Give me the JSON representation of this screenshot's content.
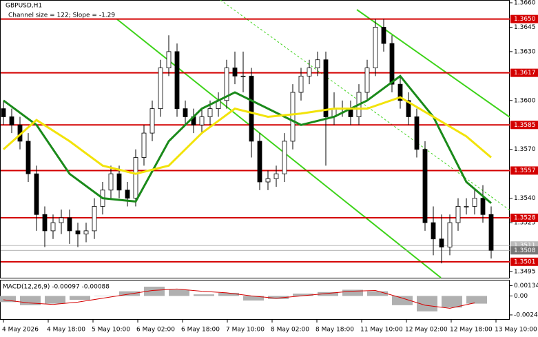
{
  "chart_data": {
    "type": "candlestick",
    "symbol": "GBPUSD,H1",
    "subtitle": "Channel size = 122; Slope = -1.29",
    "ylim": [
      1.3495,
      1.366
    ],
    "yticks": [
      {
        "value": 1.366,
        "label": "1.3660"
      },
      1.3645,
      {
        "value": 1.363,
        "label": "1.3630"
      },
      {
        "value": 1.36,
        "label": "1.3600"
      },
      {
        "value": 1.357,
        "label": "1.3570"
      },
      {
        "value": 1.354,
        "label": "1.3540"
      },
      1.3525,
      1.3495
    ],
    "levels": [
      {
        "value": 1.365,
        "label": "1.3650"
      },
      1.3617,
      1.3585,
      1.3557,
      1.3528,
      1.3501
    ],
    "level_color": "#d40000",
    "current_prices": [
      1.3511,
      1.3508
    ],
    "x_labels": [
      "4 May 2026",
      "4 May 18:00",
      "5 May 10:00",
      "6 May 02:00",
      "6 May 18:00",
      "7 May 10:00",
      "8 May 02:00",
      "8 May 18:00",
      "11 May 10:00",
      "12 May 02:00",
      "12 May 18:00",
      "13 May 10:00"
    ],
    "open": [
      1.3595,
      1.359,
      1.3585,
      1.3575,
      1.3555,
      1.353,
      1.352,
      1.3525,
      1.3528,
      1.352,
      1.3518,
      1.352,
      1.3535,
      1.3545,
      1.3555,
      1.3545,
      1.354,
      1.3565,
      1.358,
      1.3595,
      1.362,
      1.363,
      1.3595,
      1.359,
      1.3585,
      1.359,
      1.3595,
      1.36,
      1.362,
      1.3615,
      1.3615,
      1.3575,
      1.355,
      1.3552,
      1.3555,
      1.3575,
      1.3605,
      1.3615,
      1.362,
      1.3625,
      1.359,
      1.3595,
      1.3595,
      1.359,
      1.3605,
      1.362,
      1.3645,
      1.3635,
      1.361,
      1.36,
      1.359,
      1.357,
      1.3525,
      1.3515,
      1.351,
      1.3525,
      1.3535,
      1.3535,
      1.354,
      1.353
    ],
    "high": [
      1.36,
      1.3595,
      1.359,
      1.358,
      1.356,
      1.3535,
      1.353,
      1.3533,
      1.3533,
      1.3525,
      1.3525,
      1.354,
      1.355,
      1.356,
      1.356,
      1.355,
      1.357,
      1.3585,
      1.36,
      1.3625,
      1.364,
      1.3635,
      1.36,
      1.3595,
      1.3595,
      1.36,
      1.3605,
      1.3625,
      1.363,
      1.363,
      1.362,
      1.358,
      1.3557,
      1.356,
      1.358,
      1.361,
      1.362,
      1.3625,
      1.363,
      1.363,
      1.3605,
      1.36,
      1.36,
      1.361,
      1.3625,
      1.365,
      1.365,
      1.364,
      1.3615,
      1.3605,
      1.3595,
      1.3575,
      1.3535,
      1.353,
      1.353,
      1.354,
      1.354,
      1.3545,
      1.3548,
      1.3535
    ],
    "low": [
      1.3585,
      1.358,
      1.357,
      1.355,
      1.352,
      1.351,
      1.3515,
      1.3518,
      1.3512,
      1.351,
      1.3513,
      1.3515,
      1.353,
      1.354,
      1.354,
      1.3535,
      1.3535,
      1.356,
      1.3575,
      1.359,
      1.3615,
      1.359,
      1.3585,
      1.358,
      1.358,
      1.3585,
      1.359,
      1.3595,
      1.361,
      1.3605,
      1.3565,
      1.3545,
      1.3545,
      1.3547,
      1.355,
      1.357,
      1.36,
      1.361,
      1.3615,
      1.356,
      1.3585,
      1.359,
      1.3585,
      1.3585,
      1.36,
      1.3615,
      1.363,
      1.3605,
      1.3595,
      1.3585,
      1.3565,
      1.352,
      1.3505,
      1.35,
      1.3505,
      1.352,
      1.353,
      1.353,
      1.3525,
      1.3503
    ],
    "close": [
      1.359,
      1.3585,
      1.3575,
      1.3555,
      1.353,
      1.352,
      1.3525,
      1.3528,
      1.352,
      1.3518,
      1.352,
      1.3535,
      1.3545,
      1.3555,
      1.3545,
      1.354,
      1.3565,
      1.358,
      1.3595,
      1.362,
      1.363,
      1.3595,
      1.359,
      1.3585,
      1.359,
      1.3595,
      1.36,
      1.362,
      1.3615,
      1.3615,
      1.3575,
      1.355,
      1.3552,
      1.3555,
      1.3575,
      1.3605,
      1.3615,
      1.362,
      1.3625,
      1.359,
      1.3595,
      1.3595,
      1.359,
      1.3605,
      1.362,
      1.3645,
      1.3635,
      1.361,
      1.36,
      1.359,
      1.357,
      1.3525,
      1.3515,
      1.351,
      1.3525,
      1.3535,
      1.3535,
      1.354,
      1.353,
      1.3508
    ],
    "series": [
      {
        "color": "#1a8a1a",
        "x": [
          0,
          4,
          8,
          12,
          16,
          20,
          24,
          28,
          32,
          36,
          40,
          44,
          48,
          52,
          56,
          59
        ],
        "values": [
          1.36,
          1.3585,
          1.3555,
          1.354,
          1.3538,
          1.3575,
          1.3595,
          1.3605,
          1.3595,
          1.3585,
          1.359,
          1.36,
          1.3615,
          1.359,
          1.355,
          1.3537
        ]
      },
      {
        "color": "#f2e30a",
        "x": [
          0,
          4,
          8,
          12,
          16,
          20,
          24,
          28,
          32,
          36,
          40,
          44,
          48,
          52,
          56,
          59
        ],
        "values": [
          1.357,
          1.3588,
          1.3575,
          1.356,
          1.3555,
          1.356,
          1.358,
          1.3595,
          1.359,
          1.3592,
          1.3595,
          1.3595,
          1.3602,
          1.359,
          1.3578,
          1.3565
        ]
      }
    ],
    "macd": {
      "label": "MACD(12,26,9) -0.00097 -0.00088",
      "ylim": [
        -0.003,
        0.002
      ],
      "yticks": [
        0.00134,
        {
          "value": 0,
          "label": "0.00"
        },
        -0.00246
      ],
      "x": [
        0,
        3,
        6,
        9,
        12,
        15,
        18,
        21,
        24,
        27,
        30,
        33,
        36,
        39,
        42,
        45,
        48,
        51,
        54,
        57
      ],
      "histogram": [
        -0.0008,
        -0.0012,
        -0.001,
        -0.0005,
        0.0,
        0.0006,
        0.0012,
        0.0008,
        0.0002,
        0.0004,
        -0.0006,
        -0.0004,
        0.0003,
        0.0005,
        0.0008,
        0.0006,
        -0.0012,
        -0.002,
        -0.0015,
        -0.001
      ],
      "signal": [
        -0.0005,
        -0.0009,
        -0.0011,
        -0.0008,
        -0.0003,
        0.0002,
        0.0007,
        0.0009,
        0.0006,
        0.0004,
        0.0,
        -0.0003,
        0.0,
        0.0003,
        0.0006,
        0.0007,
        -0.0002,
        -0.0012,
        -0.0016,
        -0.0009
      ],
      "histogram_color": "#b0b0b0",
      "signal_color": "#d40000"
    }
  }
}
